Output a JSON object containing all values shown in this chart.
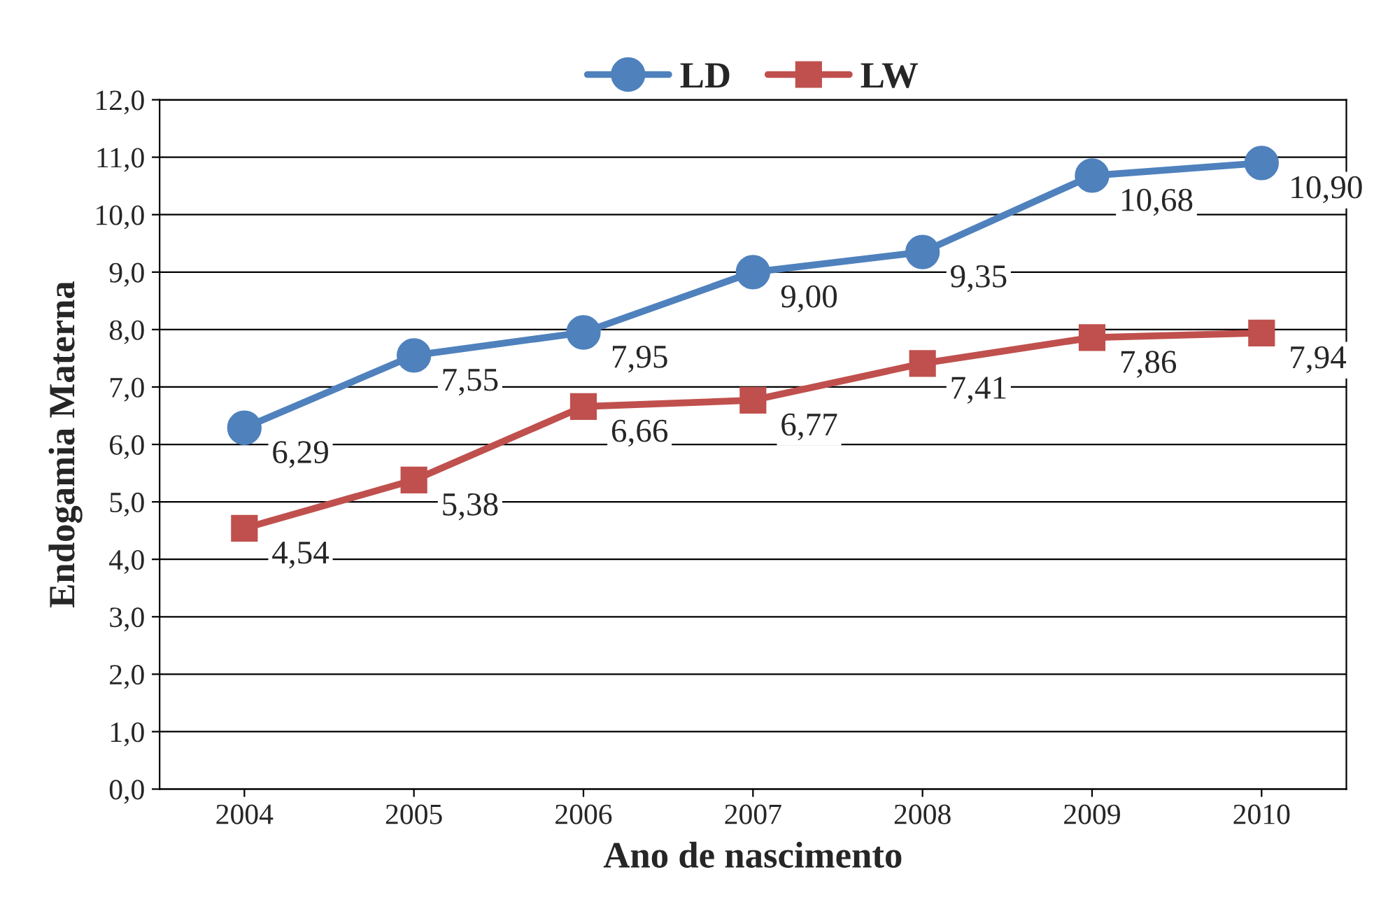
{
  "chart_data": {
    "type": "line",
    "xlabel": "Ano de nascimento",
    "ylabel": "Endogamia Materna",
    "categories": [
      "2004",
      "2005",
      "2006",
      "2007",
      "2008",
      "2009",
      "2010"
    ],
    "series": [
      {
        "name": "LD",
        "color": "#4f81bd",
        "marker": "circle",
        "values": [
          6.29,
          7.55,
          7.95,
          9.0,
          9.35,
          10.68,
          10.9
        ],
        "value_labels": [
          "6,29",
          "7,55",
          "7,95",
          "9,00",
          "9,35",
          "10,68",
          "10,90"
        ]
      },
      {
        "name": "LW",
        "color": "#c0504d",
        "marker": "square",
        "values": [
          4.54,
          5.38,
          6.66,
          6.77,
          7.41,
          7.86,
          7.94
        ],
        "value_labels": [
          "4,54",
          "5,38",
          "6,66",
          "6,77",
          "7,41",
          "7,86",
          "7,94"
        ]
      }
    ],
    "ylim": [
      0,
      12
    ],
    "yticks": [
      {
        "value": 0,
        "label": "0,0"
      },
      {
        "value": 1,
        "label": "1,0"
      },
      {
        "value": 2,
        "label": "2,0"
      },
      {
        "value": 3,
        "label": "3,0"
      },
      {
        "value": 4,
        "label": "4,0"
      },
      {
        "value": 5,
        "label": "5,0"
      },
      {
        "value": 6,
        "label": "6,0"
      },
      {
        "value": 7,
        "label": "7,0"
      },
      {
        "value": 8,
        "label": "8,0"
      },
      {
        "value": 9,
        "label": "9,0"
      },
      {
        "value": 10,
        "label": "10,0"
      },
      {
        "value": 11,
        "label": "11,0"
      },
      {
        "value": 12,
        "label": "12,0"
      }
    ],
    "grid": "y",
    "legend": "top",
    "line_style": "solid"
  }
}
